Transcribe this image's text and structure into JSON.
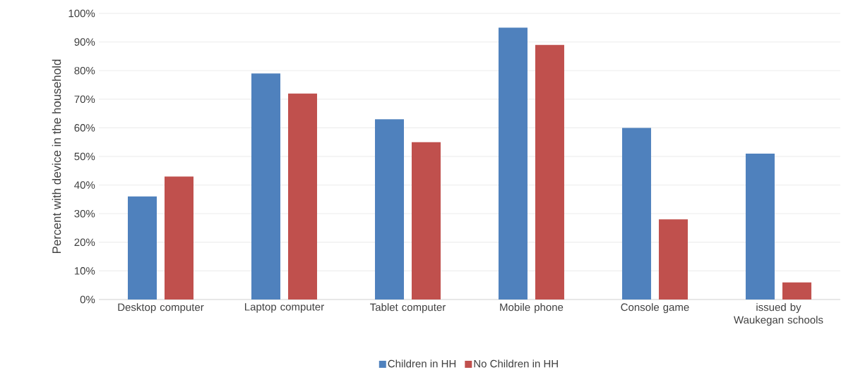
{
  "chart_data": {
    "type": "bar",
    "ylabel": "Percent with device in the household",
    "categories": [
      "Desktop computer",
      "Laptop computer",
      "Tablet computer",
      "Mobile phone",
      "Console game",
      "issued by Waukegan schools"
    ],
    "series": [
      {
        "name": "Children in HH",
        "color": "#4f81bd",
        "values": [
          36,
          79,
          63,
          95,
          60,
          51
        ]
      },
      {
        "name": "No Children in HH",
        "color": "#c0504d",
        "values": [
          43,
          72,
          55,
          89,
          28,
          6
        ]
      }
    ],
    "ylim": [
      0,
      100
    ],
    "yticks": [
      {
        "value": 0,
        "label": "0%"
      },
      {
        "value": 10,
        "label": "10%"
      },
      {
        "value": 20,
        "label": "20%"
      },
      {
        "value": 30,
        "label": "30%"
      },
      {
        "value": 40,
        "label": "40%"
      },
      {
        "value": 50,
        "label": "50%"
      },
      {
        "value": 60,
        "label": "60%"
      },
      {
        "value": 70,
        "label": "70%"
      },
      {
        "value": 80,
        "label": "80%"
      },
      {
        "value": 90,
        "label": "90%"
      },
      {
        "value": 100,
        "label": "100%"
      }
    ],
    "grid": "y",
    "legend": "bottom"
  }
}
